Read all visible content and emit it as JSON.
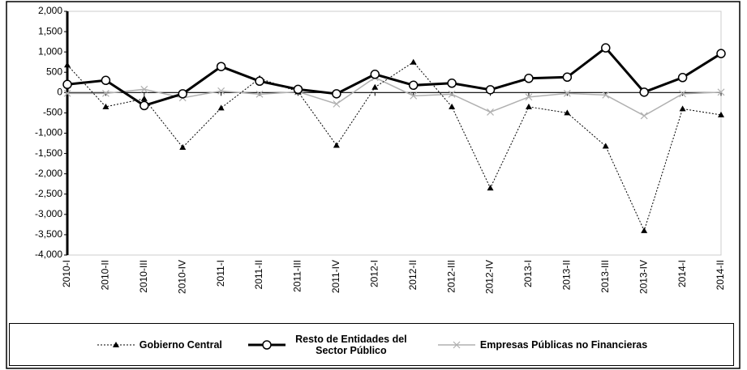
{
  "chart_data": {
    "type": "line",
    "categories": [
      "2010-I",
      "2010-II",
      "2010-III",
      "2010-IV",
      "2011-I",
      "2011-II",
      "2011-III",
      "2011-IV",
      "2012-I",
      "2012-II",
      "2012-III",
      "2012-IV",
      "2013-I",
      "2013-II",
      "2013-III",
      "2013-IV",
      "2014-I",
      "2014-II"
    ],
    "series": [
      {
        "name": "Gobierno Central",
        "color": "#000000",
        "dashed": true,
        "line_width": 1,
        "marker": "triangle",
        "values": [
          680,
          -350,
          -150,
          -1350,
          -380,
          350,
          20,
          -1300,
          130,
          750,
          -350,
          -2350,
          -350,
          -500,
          -1320,
          -3400,
          -400,
          -550
        ]
      },
      {
        "name": "Resto de Entidades del Sector Público",
        "color": "#000000",
        "dashed": false,
        "line_width": 3,
        "marker": "circle",
        "values": [
          200,
          300,
          -320,
          -30,
          640,
          280,
          80,
          -30,
          450,
          180,
          230,
          70,
          350,
          380,
          1100,
          10,
          370,
          960
        ]
      },
      {
        "name": "Empresas Públicas no Financieras",
        "color": "#b0b0b0",
        "dashed": false,
        "line_width": 1.5,
        "marker": "x",
        "values": [
          -20,
          -20,
          80,
          -130,
          40,
          -40,
          20,
          -280,
          370,
          -80,
          -40,
          -480,
          -110,
          -20,
          -60,
          -570,
          -30,
          10
        ]
      }
    ],
    "ylim": [
      -4000,
      2000
    ],
    "yticks": [
      {
        "value": 2000,
        "label": "2,000"
      },
      {
        "value": 1500,
        "label": "1,500"
      },
      {
        "value": 1000,
        "label": "1,000"
      },
      500,
      0,
      -500,
      {
        "value": -1000,
        "label": "-1,000"
      },
      {
        "value": -1500,
        "label": "-1,500"
      },
      {
        "value": -2000,
        "label": "-2,000"
      },
      {
        "value": -2500,
        "label": "-2,500"
      },
      {
        "value": -3000,
        "label": "-3,000"
      },
      {
        "value": -3500,
        "label": "-3,500"
      },
      {
        "value": -4000,
        "label": "-4,000"
      }
    ],
    "legend": "bottom"
  }
}
